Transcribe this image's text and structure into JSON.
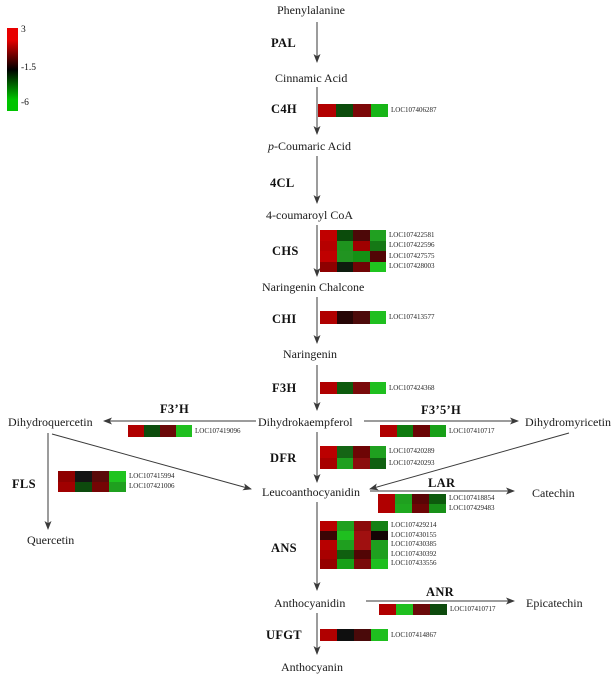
{
  "scale": {
    "max_label": "3",
    "mid_label": "-1.5",
    "min_label": "-6",
    "high_color": "#e80000",
    "mid_color": "#000000",
    "low_color": "#00c400"
  },
  "metabolites": {
    "phenylalanine": "Phenylalanine",
    "cinnamic_acid": "Cinnamic Acid",
    "p_coumaric_prefix": "p",
    "p_coumaric_rest": "-Coumaric Acid",
    "coumaroyl_coa": "4-coumaroyl CoA",
    "naringenin_chalcone": "Naringenin Chalcone",
    "naringenin": "Naringenin",
    "dihydrokaempferol": "Dihydrokaempferol",
    "dihydroquercetin": "Dihydroquercetin",
    "dihydromyricetin": "Dihydromyricetin",
    "leucoanthocyanidin": "Leucoanthocyanidin",
    "catechin": "Catechin",
    "quercetin": "Quercetin",
    "anthocyanidin": "Anthocyanidin",
    "epicatechin": "Epicatechin",
    "anthocyanin": "Anthocyanin"
  },
  "enzymes": {
    "pal": "PAL",
    "c4h": "C4H",
    "cl4": "4CL",
    "chs": "CHS",
    "chi": "CHI",
    "f3h": "F3H",
    "f3ph": "F3’H",
    "f35h": "F3’5’H",
    "dfr": "DFR",
    "fls": "FLS",
    "lar": "LAR",
    "ans": "ANS",
    "anr": "ANR",
    "ufgt": "UFGT"
  },
  "heatmaps": {
    "c4h": {
      "rows": [
        {
          "gene": "LOC107406287",
          "cells": [
            "#b20000",
            "#0c4c0c",
            "#7c0808",
            "#17b517"
          ]
        }
      ]
    },
    "chs": {
      "rows": [
        {
          "gene": "LOC107422581",
          "cells": [
            "#c00000",
            "#0b4b0b",
            "#4d0808",
            "#21a021"
          ]
        },
        {
          "gene": "LOC107422596",
          "cells": [
            "#b60000",
            "#1e941e",
            "#a00000",
            "#157815"
          ]
        },
        {
          "gene": "LOC107427575",
          "cells": [
            "#c00000",
            "#219421",
            "#149114",
            "#520505"
          ]
        },
        {
          "gene": "LOC107428003",
          "cells": [
            "#8e0000",
            "#0e1c0e",
            "#700505",
            "#1fc41f"
          ]
        }
      ]
    },
    "chi": {
      "rows": [
        {
          "gene": "LOC107413577",
          "cells": [
            "#b00000",
            "#260505",
            "#4d0a0a",
            "#1fbf1f"
          ]
        }
      ]
    },
    "f3h": {
      "rows": [
        {
          "gene": "LOC107424368",
          "cells": [
            "#b00000",
            "#0d5a0d",
            "#7a0a0a",
            "#1fbf1f"
          ]
        }
      ]
    },
    "f3ph": {
      "rows": [
        {
          "gene": "LOC107419096",
          "cells": [
            "#b00000",
            "#0d4d0d",
            "#6b0808",
            "#1fbf1f"
          ]
        }
      ]
    },
    "f35h": {
      "rows": [
        {
          "gene": "LOC107410717",
          "cells": [
            "#b00000",
            "#0f7a0f",
            "#6b0505",
            "#18a018"
          ]
        }
      ]
    },
    "dfr": {
      "rows": [
        {
          "gene": "LOC107420289",
          "cells": [
            "#bb0000",
            "#156515",
            "#6e0505",
            "#1fa01f"
          ]
        },
        {
          "gene": "LOC107420293",
          "cells": [
            "#a80000",
            "#1fa01f",
            "#8b0e0e",
            "#0f6010"
          ]
        }
      ]
    },
    "fls": {
      "rows": [
        {
          "gene": "LOC107415994",
          "cells": [
            "#8e0000",
            "#141414",
            "#5a0a0a",
            "#1fc41f"
          ]
        },
        {
          "gene": "LOC107421006",
          "cells": [
            "#a00000",
            "#0d4a0d",
            "#750505",
            "#1fa01f"
          ]
        }
      ]
    },
    "lar": {
      "rows": [
        {
          "gene": "LOC107418854",
          "cells": [
            "#b00000",
            "#1fa01f",
            "#5a0505",
            "#0d5a0d"
          ]
        },
        {
          "gene": "LOC107429483",
          "cells": [
            "#b00000",
            "#1fa81f",
            "#6e0505",
            "#189018"
          ]
        }
      ]
    },
    "ans": {
      "rows": [
        {
          "gene": "LOC107429214",
          "cells": [
            "#b80000",
            "#1fa01f",
            "#8b0a0a",
            "#148014"
          ]
        },
        {
          "gene": "LOC107430155",
          "cells": [
            "#3a0505",
            "#1fbf1f",
            "#a01010",
            "#140505"
          ]
        },
        {
          "gene": "LOC107430385",
          "cells": [
            "#b80000",
            "#1f9f1f",
            "#a01010",
            "#1f9f1f"
          ]
        },
        {
          "gene": "LOC107430392",
          "cells": [
            "#a80000",
            "#0f5f0f",
            "#520505",
            "#1fa01f"
          ]
        },
        {
          "gene": "LOC107433556",
          "cells": [
            "#960000",
            "#18a018",
            "#7a0a0a",
            "#1fbf1f"
          ]
        }
      ]
    },
    "anr": {
      "rows": [
        {
          "gene": "LOC107410717",
          "cells": [
            "#b00000",
            "#1fbf1f",
            "#6b0a0a",
            "#0d4a0d"
          ]
        }
      ]
    },
    "ufgt": {
      "rows": [
        {
          "gene": "LOC107414867",
          "cells": [
            "#b00000",
            "#0f0f0f",
            "#4a0a0a",
            "#1fbf1f"
          ]
        }
      ]
    }
  }
}
